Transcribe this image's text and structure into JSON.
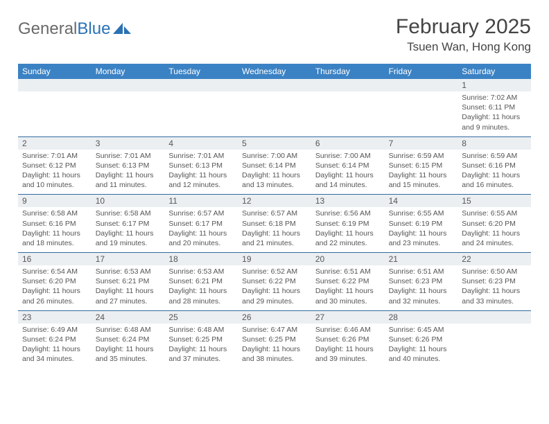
{
  "logo": {
    "word1": "General",
    "word2": "Blue"
  },
  "title": "February 2025",
  "location": "Tsuen Wan, Hong Kong",
  "colors": {
    "header_bg": "#3b82c4",
    "header_text": "#ffffff",
    "row_divider": "#2f6aa0",
    "daynum_bg": "#eceff1",
    "body_text": "#555555",
    "title_text": "#444444",
    "logo_gray": "#6a6a6a",
    "logo_blue": "#2a72b5"
  },
  "day_labels": [
    "Sunday",
    "Monday",
    "Tuesday",
    "Wednesday",
    "Thursday",
    "Friday",
    "Saturday"
  ],
  "weeks": [
    [
      {
        "num": "",
        "lines": []
      },
      {
        "num": "",
        "lines": []
      },
      {
        "num": "",
        "lines": []
      },
      {
        "num": "",
        "lines": []
      },
      {
        "num": "",
        "lines": []
      },
      {
        "num": "",
        "lines": []
      },
      {
        "num": "1",
        "lines": [
          "Sunrise: 7:02 AM",
          "Sunset: 6:11 PM",
          "Daylight: 11 hours and 9 minutes."
        ]
      }
    ],
    [
      {
        "num": "2",
        "lines": [
          "Sunrise: 7:01 AM",
          "Sunset: 6:12 PM",
          "Daylight: 11 hours and 10 minutes."
        ]
      },
      {
        "num": "3",
        "lines": [
          "Sunrise: 7:01 AM",
          "Sunset: 6:13 PM",
          "Daylight: 11 hours and 11 minutes."
        ]
      },
      {
        "num": "4",
        "lines": [
          "Sunrise: 7:01 AM",
          "Sunset: 6:13 PM",
          "Daylight: 11 hours and 12 minutes."
        ]
      },
      {
        "num": "5",
        "lines": [
          "Sunrise: 7:00 AM",
          "Sunset: 6:14 PM",
          "Daylight: 11 hours and 13 minutes."
        ]
      },
      {
        "num": "6",
        "lines": [
          "Sunrise: 7:00 AM",
          "Sunset: 6:14 PM",
          "Daylight: 11 hours and 14 minutes."
        ]
      },
      {
        "num": "7",
        "lines": [
          "Sunrise: 6:59 AM",
          "Sunset: 6:15 PM",
          "Daylight: 11 hours and 15 minutes."
        ]
      },
      {
        "num": "8",
        "lines": [
          "Sunrise: 6:59 AM",
          "Sunset: 6:16 PM",
          "Daylight: 11 hours and 16 minutes."
        ]
      }
    ],
    [
      {
        "num": "9",
        "lines": [
          "Sunrise: 6:58 AM",
          "Sunset: 6:16 PM",
          "Daylight: 11 hours and 18 minutes."
        ]
      },
      {
        "num": "10",
        "lines": [
          "Sunrise: 6:58 AM",
          "Sunset: 6:17 PM",
          "Daylight: 11 hours and 19 minutes."
        ]
      },
      {
        "num": "11",
        "lines": [
          "Sunrise: 6:57 AM",
          "Sunset: 6:17 PM",
          "Daylight: 11 hours and 20 minutes."
        ]
      },
      {
        "num": "12",
        "lines": [
          "Sunrise: 6:57 AM",
          "Sunset: 6:18 PM",
          "Daylight: 11 hours and 21 minutes."
        ]
      },
      {
        "num": "13",
        "lines": [
          "Sunrise: 6:56 AM",
          "Sunset: 6:19 PM",
          "Daylight: 11 hours and 22 minutes."
        ]
      },
      {
        "num": "14",
        "lines": [
          "Sunrise: 6:55 AM",
          "Sunset: 6:19 PM",
          "Daylight: 11 hours and 23 minutes."
        ]
      },
      {
        "num": "15",
        "lines": [
          "Sunrise: 6:55 AM",
          "Sunset: 6:20 PM",
          "Daylight: 11 hours and 24 minutes."
        ]
      }
    ],
    [
      {
        "num": "16",
        "lines": [
          "Sunrise: 6:54 AM",
          "Sunset: 6:20 PM",
          "Daylight: 11 hours and 26 minutes."
        ]
      },
      {
        "num": "17",
        "lines": [
          "Sunrise: 6:53 AM",
          "Sunset: 6:21 PM",
          "Daylight: 11 hours and 27 minutes."
        ]
      },
      {
        "num": "18",
        "lines": [
          "Sunrise: 6:53 AM",
          "Sunset: 6:21 PM",
          "Daylight: 11 hours and 28 minutes."
        ]
      },
      {
        "num": "19",
        "lines": [
          "Sunrise: 6:52 AM",
          "Sunset: 6:22 PM",
          "Daylight: 11 hours and 29 minutes."
        ]
      },
      {
        "num": "20",
        "lines": [
          "Sunrise: 6:51 AM",
          "Sunset: 6:22 PM",
          "Daylight: 11 hours and 30 minutes."
        ]
      },
      {
        "num": "21",
        "lines": [
          "Sunrise: 6:51 AM",
          "Sunset: 6:23 PM",
          "Daylight: 11 hours and 32 minutes."
        ]
      },
      {
        "num": "22",
        "lines": [
          "Sunrise: 6:50 AM",
          "Sunset: 6:23 PM",
          "Daylight: 11 hours and 33 minutes."
        ]
      }
    ],
    [
      {
        "num": "23",
        "lines": [
          "Sunrise: 6:49 AM",
          "Sunset: 6:24 PM",
          "Daylight: 11 hours and 34 minutes."
        ]
      },
      {
        "num": "24",
        "lines": [
          "Sunrise: 6:48 AM",
          "Sunset: 6:24 PM",
          "Daylight: 11 hours and 35 minutes."
        ]
      },
      {
        "num": "25",
        "lines": [
          "Sunrise: 6:48 AM",
          "Sunset: 6:25 PM",
          "Daylight: 11 hours and 37 minutes."
        ]
      },
      {
        "num": "26",
        "lines": [
          "Sunrise: 6:47 AM",
          "Sunset: 6:25 PM",
          "Daylight: 11 hours and 38 minutes."
        ]
      },
      {
        "num": "27",
        "lines": [
          "Sunrise: 6:46 AM",
          "Sunset: 6:26 PM",
          "Daylight: 11 hours and 39 minutes."
        ]
      },
      {
        "num": "28",
        "lines": [
          "Sunrise: 6:45 AM",
          "Sunset: 6:26 PM",
          "Daylight: 11 hours and 40 minutes."
        ]
      },
      {
        "num": "",
        "lines": []
      }
    ]
  ]
}
